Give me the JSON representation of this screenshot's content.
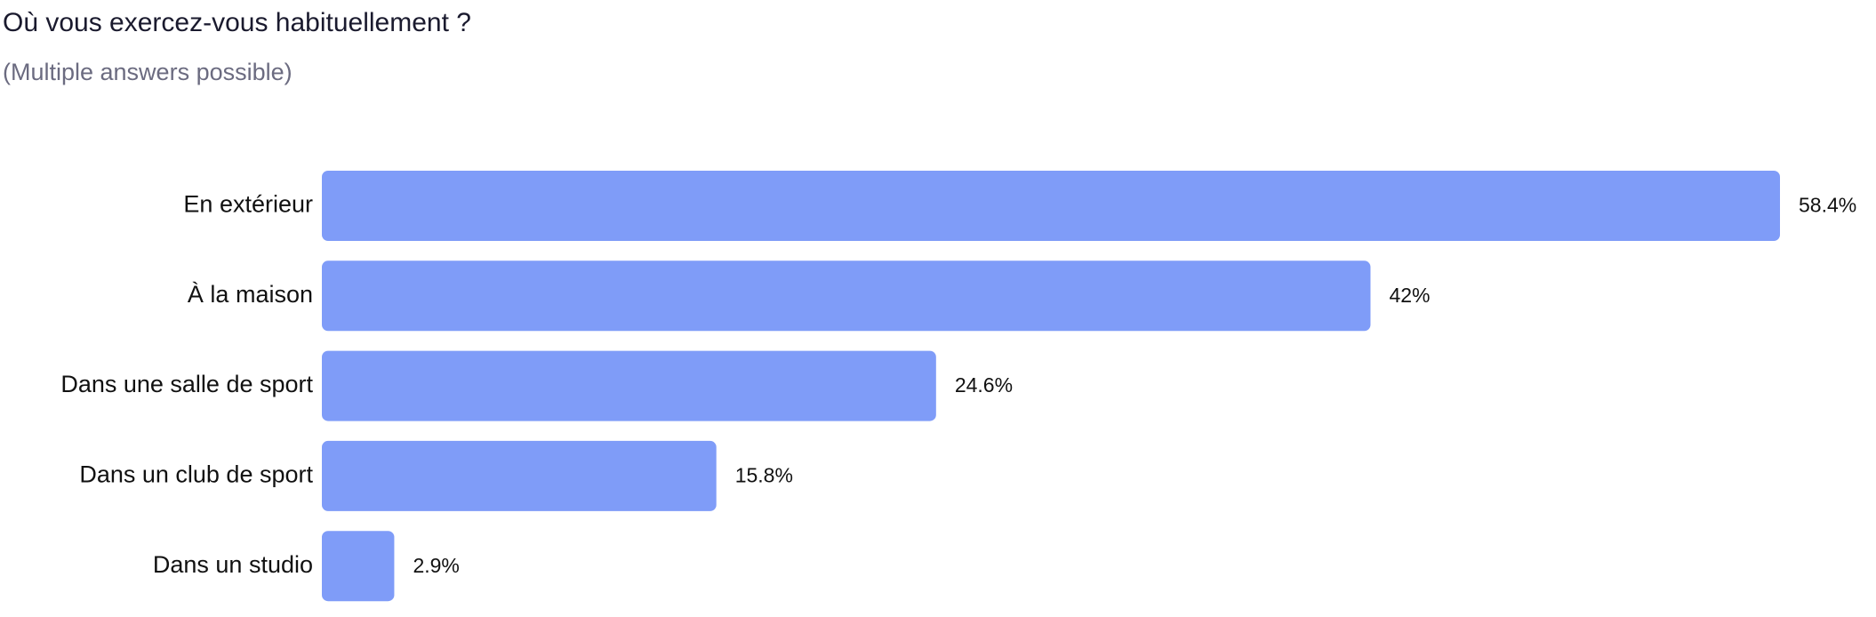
{
  "chart_data": {
    "type": "hbar",
    "title": "Où vous exercez-vous habituellement ?",
    "subtitle": "(Multiple answers possible)",
    "categories": [
      "En extérieur",
      "À la maison",
      "Dans une salle de sport",
      "Dans un club de sport",
      "Dans un studio"
    ],
    "values": [
      58.4,
      42,
      24.6,
      15.8,
      2.9
    ],
    "value_labels": [
      "58.4%",
      "42%",
      "24.6%",
      "15.8%",
      "2.9%"
    ],
    "color": "#7f9cf8"
  }
}
